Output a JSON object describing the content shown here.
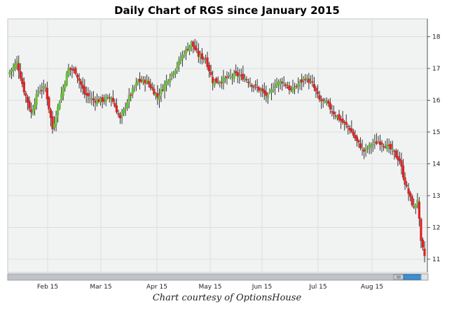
{
  "chart_data": {
    "type": "candlestick",
    "title": "Daily Chart of RGS since January 2015",
    "caption": "Chart courtesy of OptionsHouse",
    "x_labels": [
      "Feb 15",
      "Mar 15",
      "Apr 15",
      "May 15",
      "Jun 15",
      "Jul 15",
      "Aug 15"
    ],
    "y_ticks": [
      11,
      12,
      13,
      14,
      15,
      16,
      17,
      18
    ],
    "ylim": [
      10.5,
      18.5
    ],
    "grid": true,
    "colors": {
      "up": "#6abf3a",
      "down": "#dd2222",
      "grid": "#dedede",
      "background": "#f1f2f2"
    },
    "series_anchors_close": [
      [
        0,
        16.9
      ],
      [
        4,
        17.2
      ],
      [
        8,
        16.3
      ],
      [
        12,
        15.6
      ],
      [
        16,
        16.3
      ],
      [
        20,
        16.4
      ],
      [
        24,
        15.1
      ],
      [
        28,
        16.0
      ],
      [
        33,
        17.0
      ],
      [
        37,
        16.9
      ],
      [
        42,
        16.2
      ],
      [
        47,
        16.0
      ],
      [
        52,
        16.0
      ],
      [
        57,
        16.1
      ],
      [
        62,
        15.4
      ],
      [
        67,
        16.1
      ],
      [
        72,
        16.6
      ],
      [
        77,
        16.6
      ],
      [
        83,
        16.1
      ],
      [
        88,
        16.6
      ],
      [
        93,
        17.0
      ],
      [
        98,
        17.5
      ],
      [
        102,
        17.8
      ],
      [
        106,
        17.4
      ],
      [
        110,
        17.3
      ],
      [
        114,
        16.6
      ],
      [
        118,
        16.6
      ],
      [
        122,
        16.7
      ],
      [
        127,
        16.8
      ],
      [
        132,
        16.7
      ],
      [
        136,
        16.5
      ],
      [
        141,
        16.3
      ],
      [
        145,
        16.1
      ],
      [
        149,
        16.5
      ],
      [
        153,
        16.6
      ],
      [
        158,
        16.3
      ],
      [
        162,
        16.5
      ],
      [
        166,
        16.7
      ],
      [
        170,
        16.5
      ],
      [
        174,
        16.0
      ],
      [
        178,
        15.9
      ],
      [
        182,
        15.6
      ],
      [
        187,
        15.3
      ],
      [
        191,
        15.1
      ],
      [
        195,
        14.7
      ],
      [
        199,
        14.4
      ],
      [
        203,
        14.6
      ],
      [
        207,
        14.7
      ],
      [
        211,
        14.6
      ],
      [
        215,
        14.4
      ],
      [
        219,
        14.1
      ],
      [
        222,
        13.4
      ],
      [
        225,
        12.9
      ],
      [
        227,
        12.6
      ],
      [
        229,
        12.9
      ],
      [
        231,
        11.5
      ],
      [
        233,
        11.1
      ]
    ]
  }
}
